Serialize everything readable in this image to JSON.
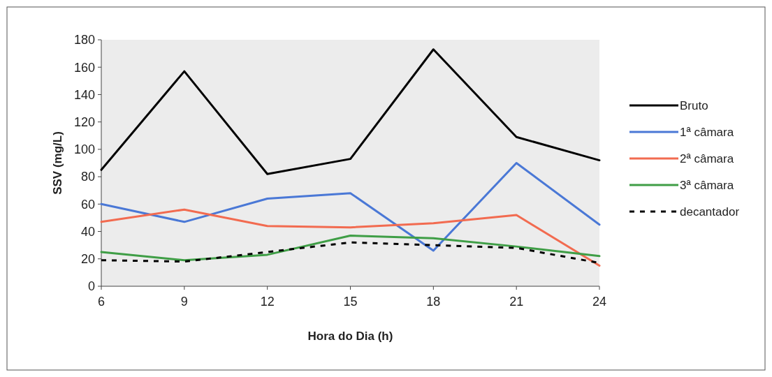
{
  "chart_data": {
    "type": "line",
    "xlabel": "Hora do Dia (h)",
    "ylabel": "SSV (mg/L)",
    "x": [
      6,
      9,
      12,
      15,
      18,
      21,
      24
    ],
    "xlim": [
      6,
      24
    ],
    "xticks": [
      6,
      9,
      12,
      15,
      18,
      21,
      24
    ],
    "ylim": [
      0,
      180
    ],
    "yticks": [
      0,
      20,
      40,
      60,
      80,
      100,
      120,
      140,
      160,
      180
    ],
    "grid": false,
    "legend": "right",
    "marker": "none",
    "series": [
      {
        "name": "Bruto",
        "color": "#000000",
        "line_style": "solid",
        "values": [
          85,
          157,
          82,
          93,
          173,
          109,
          92
        ]
      },
      {
        "name": "1ª câmara",
        "color": "#4a78d6",
        "line_style": "solid",
        "values": [
          60,
          47,
          64,
          68,
          26,
          90,
          45
        ]
      },
      {
        "name": "2ª câmara",
        "color": "#f26b50",
        "line_style": "solid",
        "values": [
          47,
          56,
          44,
          43,
          46,
          52,
          15
        ]
      },
      {
        "name": "3ª câmara",
        "color": "#3f9e46",
        "line_style": "solid",
        "values": [
          25,
          19,
          23,
          37,
          35,
          29,
          22
        ]
      },
      {
        "name": "decantador",
        "color": "#000000",
        "line_style": "dashed",
        "values": [
          19,
          18,
          25,
          32,
          30,
          28,
          17
        ]
      }
    ]
  }
}
